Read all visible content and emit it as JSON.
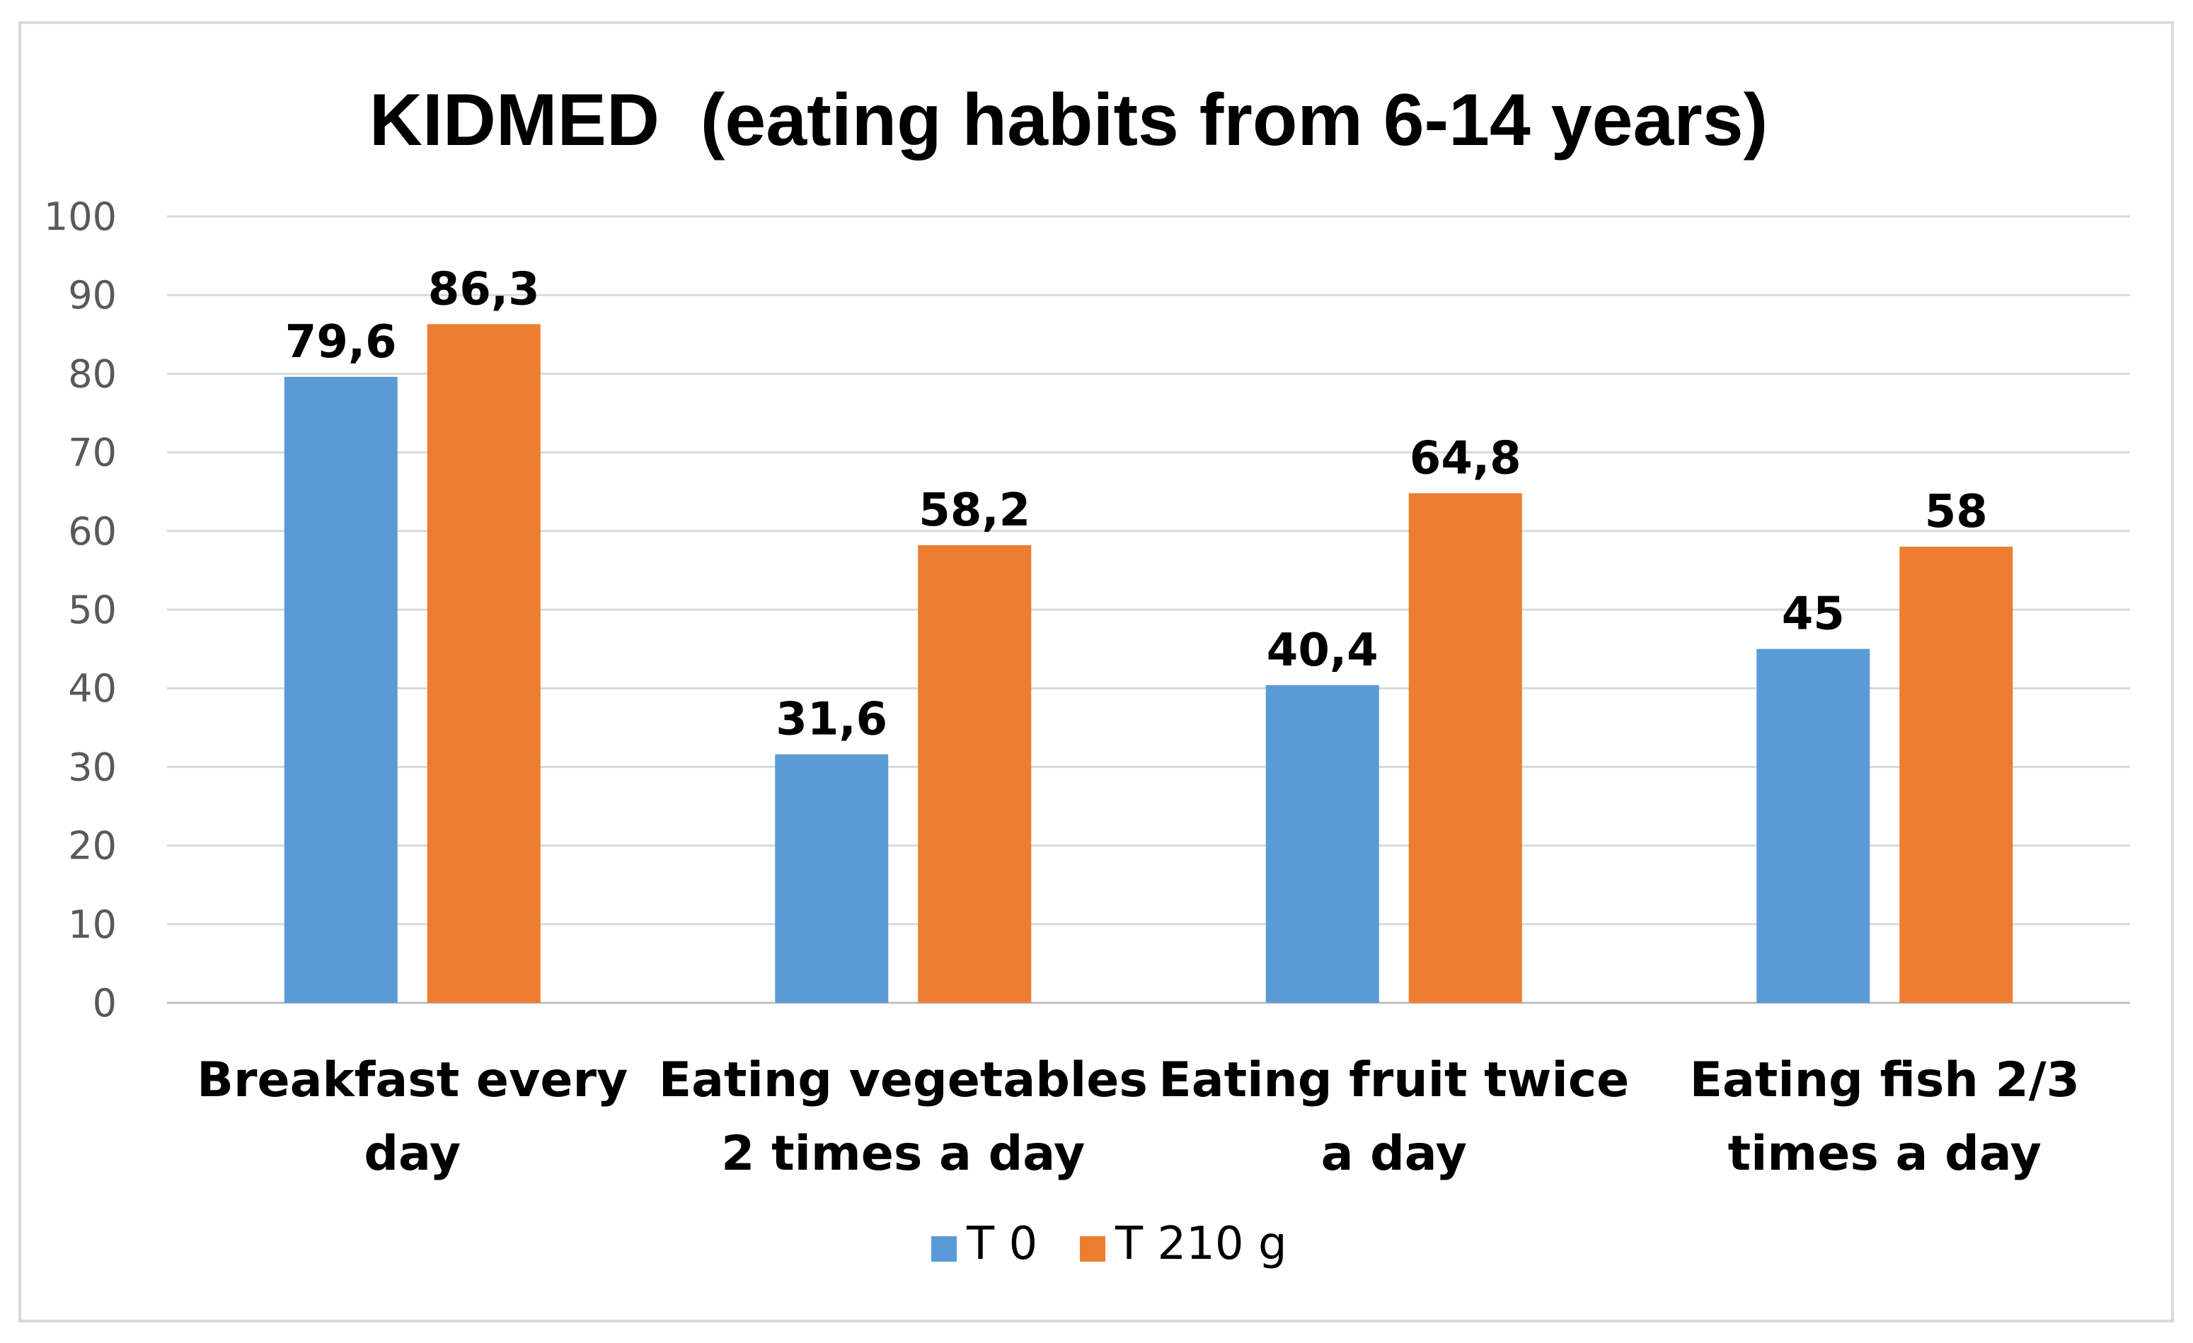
{
  "chart_data": {
    "type": "bar",
    "title": "KIDMED  (eating habits from 6-14 years)",
    "xlabel": "",
    "ylabel": "",
    "ylim": [
      0,
      100
    ],
    "yticks": [
      0,
      10,
      20,
      30,
      40,
      50,
      60,
      70,
      80,
      90,
      100
    ],
    "ytick_labels": [
      "0",
      "10",
      "20",
      "30",
      "40",
      "50",
      "60",
      "70",
      "80",
      "90",
      "100"
    ],
    "grid": true,
    "legend_position": "bottom",
    "categories": [
      [
        "Breakfast every",
        "day"
      ],
      [
        "Eating vegetables",
        "2 times a day"
      ],
      [
        "Eating fruit twice",
        "a day"
      ],
      [
        "Eating fish 2/3",
        "times a day"
      ]
    ],
    "series": [
      {
        "name": "T 0",
        "color": "#5b9bd5",
        "values": [
          79.6,
          31.6,
          40.4,
          45
        ],
        "labels": [
          "79,6",
          "31,6",
          "40,4",
          "45"
        ]
      },
      {
        "name": "T 210 g",
        "color": "#ed7d31",
        "values": [
          86.3,
          58.2,
          64.8,
          58
        ],
        "labels": [
          "86,3",
          "58,2",
          "64,8",
          "58"
        ]
      }
    ]
  }
}
